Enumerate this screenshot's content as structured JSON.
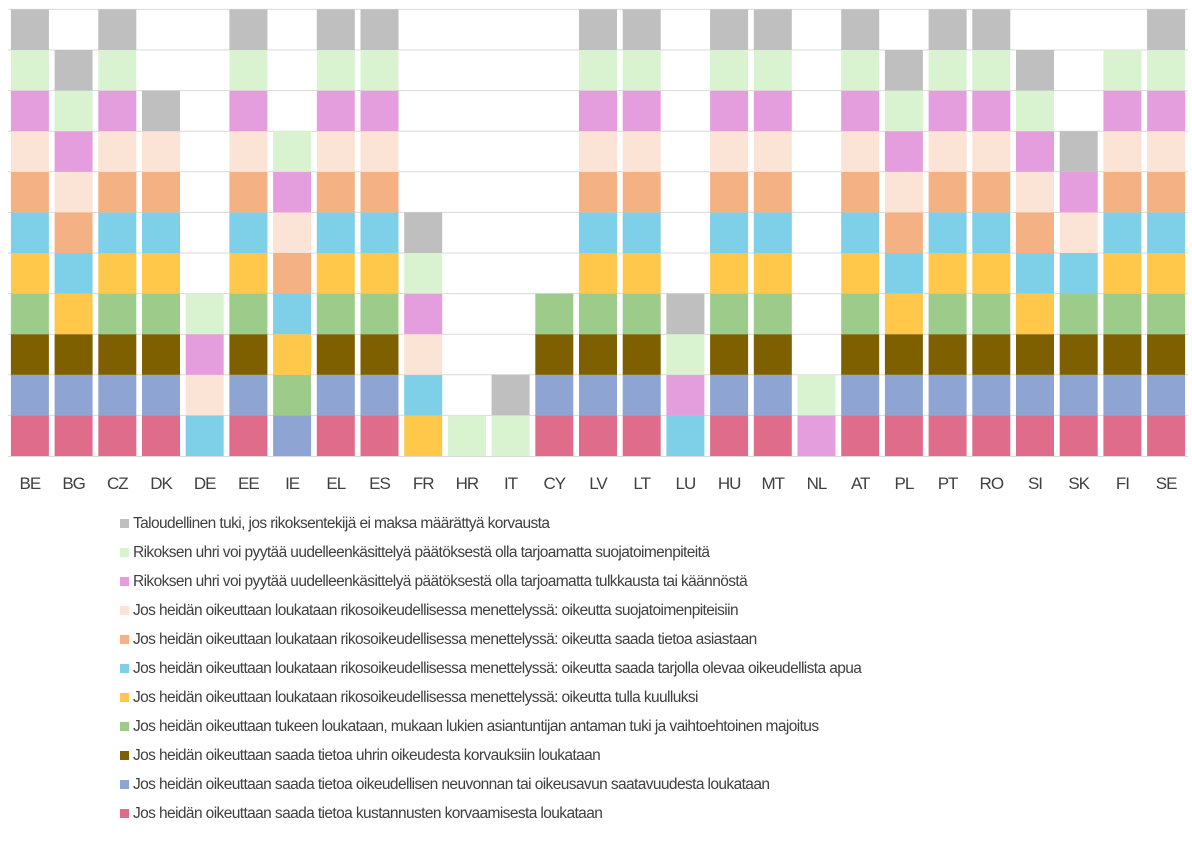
{
  "chart_data": {
    "type": "bar",
    "stacked": true,
    "categories": [
      "BE",
      "BG",
      "CZ",
      "DK",
      "DE",
      "EE",
      "IE",
      "EL",
      "ES",
      "FR",
      "HR",
      "IT",
      "CY",
      "LV",
      "LT",
      "LU",
      "HU",
      "MT",
      "NL",
      "AT",
      "PL",
      "PT",
      "RO",
      "SI",
      "SK",
      "FI",
      "SE"
    ],
    "series": [
      {
        "name": "Jos heidän oikeuttaan saada tietoa kustannusten korvaamisesta loukataan",
        "color": "#E06C8C",
        "values": [
          1,
          1,
          1,
          1,
          0,
          1,
          0,
          1,
          1,
          0,
          0,
          0,
          1,
          1,
          1,
          0,
          1,
          1,
          0,
          1,
          1,
          1,
          1,
          1,
          1,
          1,
          1
        ]
      },
      {
        "name": "Jos heidän oikeuttaan saada tietoa oikeudellisen neuvonnan tai oikeusavun saatavuudesta loukataan",
        "color": "#8EA5D4",
        "values": [
          1,
          1,
          1,
          1,
          0,
          1,
          1,
          1,
          1,
          0,
          0,
          0,
          1,
          1,
          1,
          0,
          1,
          1,
          0,
          1,
          1,
          1,
          1,
          1,
          1,
          1,
          1
        ]
      },
      {
        "name": "Jos heidän oikeuttaan saada tietoa uhrin oikeudesta korvauksiin loukataan",
        "color": "#7F6000",
        "values": [
          1,
          1,
          1,
          1,
          0,
          1,
          0,
          1,
          1,
          0,
          0,
          0,
          1,
          1,
          1,
          0,
          1,
          1,
          0,
          1,
          1,
          1,
          1,
          1,
          1,
          1,
          1
        ]
      },
      {
        "name": "Jos heidän oikeuttaan tukeen loukataan, mukaan lukien asiantuntijan antaman tuki ja vaihtoehtoinen majoitus",
        "color": "#9DCB8A",
        "values": [
          1,
          0,
          1,
          1,
          0,
          1,
          1,
          1,
          1,
          0,
          0,
          0,
          1,
          1,
          1,
          0,
          1,
          1,
          0,
          1,
          0,
          1,
          1,
          0,
          1,
          1,
          1
        ]
      },
      {
        "name": "Jos heidän oikeuttaan loukataan rikosoikeudellisessa menettelyssä: oikeutta tulla kuulluksi",
        "color": "#FFC84A",
        "values": [
          1,
          1,
          1,
          1,
          0,
          1,
          1,
          1,
          1,
          1,
          0,
          0,
          0,
          1,
          1,
          0,
          1,
          1,
          0,
          1,
          1,
          1,
          1,
          1,
          0,
          1,
          1
        ]
      },
      {
        "name": "Jos heidän oikeuttaan loukataan rikosoikeudellisessa menettelyssä: oikeutta saada tarjolla olevaa oikeudellista apua",
        "color": "#7DD0E8",
        "values": [
          1,
          1,
          1,
          1,
          1,
          1,
          1,
          1,
          1,
          1,
          0,
          0,
          0,
          1,
          1,
          1,
          1,
          1,
          0,
          1,
          1,
          1,
          1,
          1,
          1,
          1,
          1
        ]
      },
      {
        "name": "Jos heidän oikeuttaan loukataan rikosoikeudellisessa menettelyssä: oikeutta saada tietoa asiastaan",
        "color": "#F4B183",
        "values": [
          1,
          1,
          1,
          1,
          0,
          1,
          1,
          1,
          1,
          0,
          0,
          0,
          0,
          1,
          1,
          0,
          1,
          1,
          0,
          1,
          1,
          1,
          1,
          1,
          0,
          1,
          1
        ]
      },
      {
        "name": "Jos heidän oikeuttaan loukataan rikosoikeudellisessa menettelyssä: oikeutta suojatoimenpiteisiin",
        "color": "#FBE3D6",
        "values": [
          1,
          1,
          1,
          1,
          1,
          1,
          1,
          1,
          1,
          1,
          0,
          0,
          0,
          1,
          1,
          0,
          1,
          1,
          0,
          1,
          1,
          1,
          1,
          1,
          1,
          1,
          1
        ]
      },
      {
        "name": "Rikoksen uhri voi pyytää uudelleenkäsittelyä päätöksestä olla tarjoamatta tulkkausta tai käännöstä",
        "color": "#E59EDD",
        "values": [
          1,
          1,
          1,
          0,
          1,
          1,
          1,
          1,
          1,
          1,
          0,
          0,
          0,
          1,
          1,
          1,
          1,
          1,
          1,
          1,
          1,
          1,
          1,
          1,
          1,
          1,
          1
        ]
      },
      {
        "name": "Rikoksen uhri voi pyytää uudelleenkäsittelyä päätöksestä olla tarjoamatta suojatoimenpiteitä",
        "color": "#D9F2D0",
        "values": [
          1,
          1,
          1,
          0,
          1,
          1,
          1,
          1,
          1,
          1,
          1,
          1,
          0,
          1,
          1,
          1,
          1,
          1,
          1,
          1,
          1,
          1,
          1,
          1,
          0,
          1,
          1
        ]
      },
      {
        "name": "Taloudellinen tuki, jos rikoksentekijä ei maksa määrättyä korvausta",
        "color": "#BFBFBF",
        "values": [
          1,
          1,
          1,
          1,
          0,
          1,
          0,
          1,
          1,
          1,
          0,
          1,
          0,
          1,
          1,
          1,
          1,
          1,
          0,
          1,
          1,
          1,
          1,
          1,
          1,
          0,
          1
        ]
      }
    ],
    "ylim": [
      0,
      11
    ],
    "grid": true,
    "legend_position": "bottom"
  }
}
